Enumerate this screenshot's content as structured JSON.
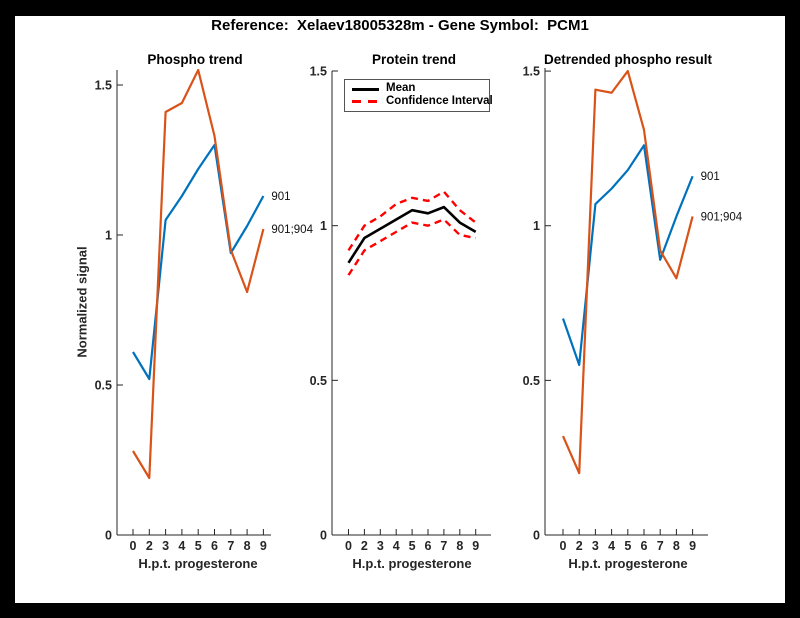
{
  "figure": {
    "title": "Reference:  Xelaev18005328m - Gene Symbol:  PCM1",
    "background": "#000000",
    "canvas_background": "#FFFFFF"
  },
  "colors": {
    "blue": "#0072BD",
    "orange": "#D95319",
    "red": "#FF0000",
    "black": "#000000",
    "axis": "#262626"
  },
  "y_axis": {
    "label": "Normalized signal"
  },
  "chart_data": [
    {
      "type": "line",
      "title": "Phospho trend",
      "xlabel": "H.p.t. progesterone",
      "ylabel": "Normalized signal",
      "x_categories": [
        "0",
        "2",
        "3",
        "4",
        "5",
        "6",
        "7",
        "8",
        "9"
      ],
      "yticks": [
        0,
        0.5,
        1,
        1.5
      ],
      "ytick_labels": [
        "0",
        "0.5",
        "1",
        "1.5"
      ],
      "ylim": [
        0,
        1.55
      ],
      "grid": false,
      "legend_position": "none",
      "series": [
        {
          "name": "901",
          "color": "#0072BD",
          "style": "solid",
          "end_label": "901",
          "values": [
            0.61,
            0.52,
            1.05,
            1.13,
            1.22,
            1.3,
            0.94,
            1.03,
            1.13
          ]
        },
        {
          "name": "901;904",
          "color": "#D95319",
          "style": "solid",
          "end_label": "901;904",
          "values": [
            0.28,
            0.19,
            1.41,
            1.44,
            1.55,
            1.33,
            0.95,
            0.81,
            1.02
          ]
        }
      ]
    },
    {
      "type": "line",
      "title": "Protein trend",
      "xlabel": "H.p.t. progesterone",
      "ylabel": "Normalized signal",
      "x_categories": [
        "0",
        "2",
        "3",
        "4",
        "5",
        "6",
        "7",
        "8",
        "9"
      ],
      "yticks": [
        0,
        0.5,
        1,
        1.5
      ],
      "ytick_labels": [
        "0",
        "0.5",
        "1",
        "1.5"
      ],
      "ylim": [
        0,
        1.5
      ],
      "grid": false,
      "legend": {
        "position": "top-left",
        "entries": [
          {
            "label": "Mean",
            "color": "#000000",
            "style": "solid"
          },
          {
            "label": "Confidence Interval",
            "color": "#FF0000",
            "style": "dashed"
          }
        ]
      },
      "series": [
        {
          "name": "Mean",
          "color": "#000000",
          "style": "solid",
          "values": [
            0.88,
            0.96,
            0.99,
            1.02,
            1.05,
            1.04,
            1.06,
            1.01,
            0.98
          ]
        },
        {
          "name": "Confidence Interval upper",
          "color": "#FF0000",
          "style": "dashed",
          "values": [
            0.92,
            1.0,
            1.03,
            1.07,
            1.09,
            1.08,
            1.11,
            1.05,
            1.01
          ]
        },
        {
          "name": "Confidence Interval lower",
          "color": "#FF0000",
          "style": "dashed",
          "values": [
            0.84,
            0.92,
            0.95,
            0.98,
            1.01,
            1.0,
            1.02,
            0.97,
            0.96
          ]
        }
      ]
    },
    {
      "type": "line",
      "title": "Detrended phospho result",
      "xlabel": "H.p.t. progesterone",
      "ylabel": "Normalized signal",
      "x_categories": [
        "0",
        "2",
        "3",
        "4",
        "5",
        "6",
        "7",
        "8",
        "9"
      ],
      "yticks": [
        0,
        0.5,
        1,
        1.5
      ],
      "ytick_labels": [
        "0",
        "0.5",
        "1",
        "1.5"
      ],
      "ylim": [
        0,
        1.51
      ],
      "grid": false,
      "legend_position": "none",
      "series": [
        {
          "name": "901",
          "color": "#0072BD",
          "style": "solid",
          "end_label": "901",
          "values": [
            0.7,
            0.55,
            1.07,
            1.12,
            1.18,
            1.26,
            0.89,
            1.03,
            1.16
          ]
        },
        {
          "name": "901;904",
          "color": "#D95319",
          "style": "solid",
          "end_label": "901;904",
          "values": [
            0.32,
            0.2,
            1.44,
            1.43,
            1.5,
            1.31,
            0.92,
            0.83,
            1.03
          ]
        }
      ]
    }
  ]
}
